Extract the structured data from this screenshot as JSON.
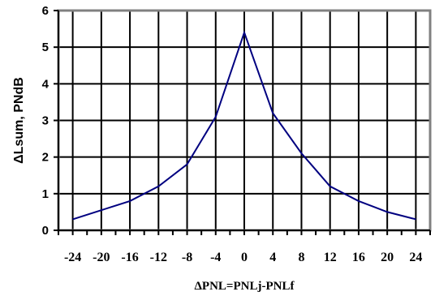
{
  "chart_data": {
    "type": "line",
    "xlabel": "ΔPNL=PNLj-PNLf",
    "ylabel": "ΔLsum, PNdB",
    "xlim": [
      -26,
      26
    ],
    "ylim": [
      0,
      6
    ],
    "x_ticks": [
      -24,
      -20,
      -16,
      -12,
      -8,
      -4,
      0,
      4,
      8,
      12,
      16,
      20,
      24
    ],
    "y_ticks": [
      0,
      1,
      2,
      3,
      4,
      5,
      6
    ],
    "grid": true,
    "line_color": "#000080",
    "series": [
      {
        "x": [
          -24,
          -20,
          -16,
          -12,
          -8,
          -4,
          0,
          4,
          8,
          12,
          16,
          20,
          24
        ],
        "y": [
          0.3,
          0.55,
          0.8,
          1.2,
          1.8,
          3.1,
          5.4,
          3.2,
          2.1,
          1.2,
          0.8,
          0.5,
          0.3
        ]
      }
    ]
  }
}
